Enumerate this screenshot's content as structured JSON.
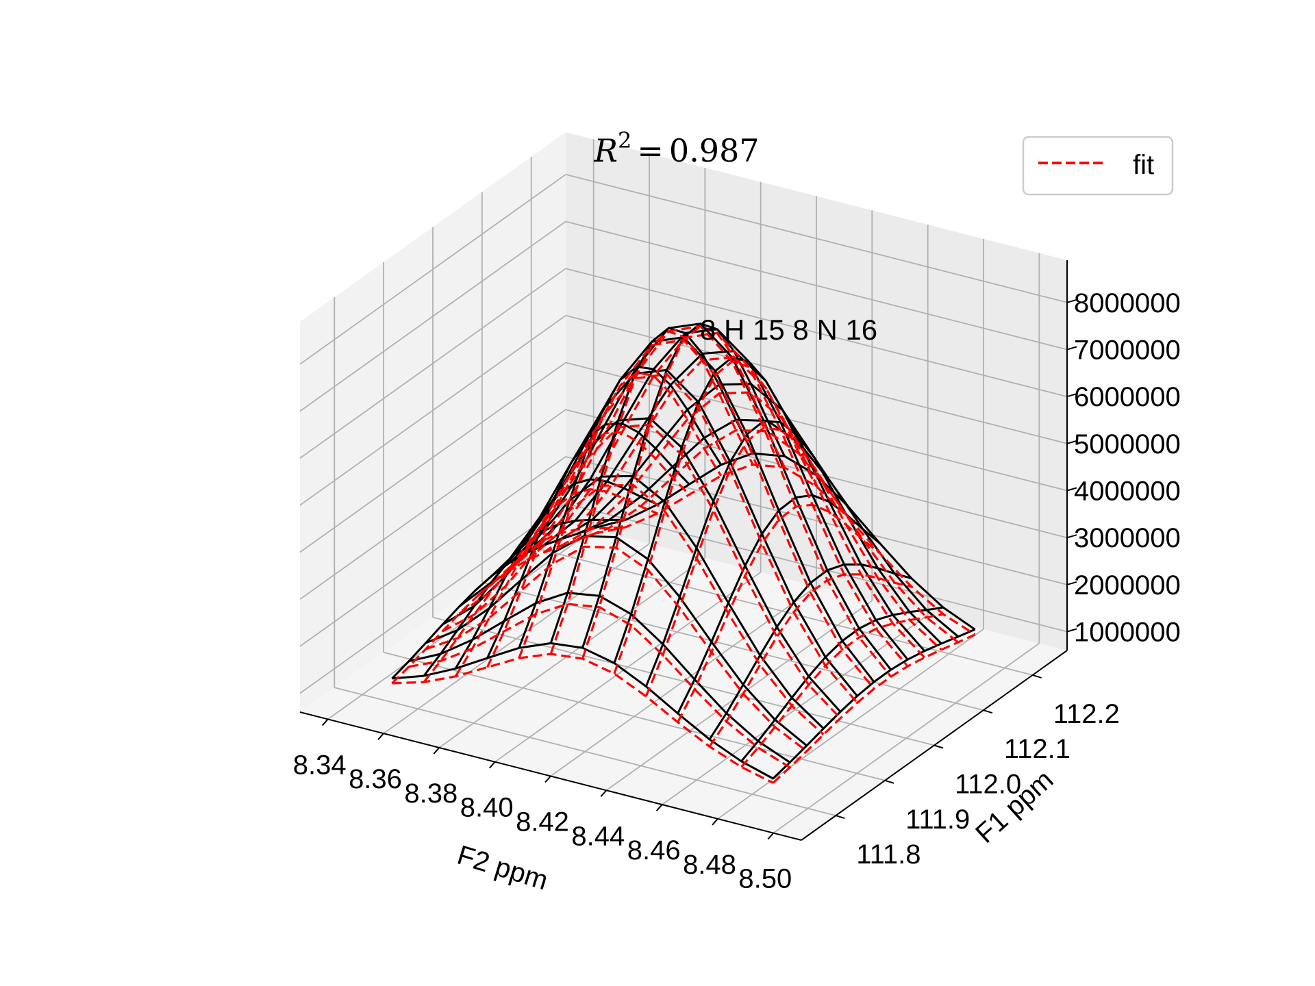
{
  "chart_data": {
    "type": "surface3d",
    "title": {
      "symbol": "R",
      "exponent": "2",
      "equals": "=",
      "value": "0.987"
    },
    "annotation": "8 H 15  8 N 16",
    "xlabel": "F2 ppm",
    "ylabel": "F1 ppm",
    "zlabel": "",
    "x_ticks": [
      "8.34",
      "8.36",
      "8.38",
      "8.40",
      "8.42",
      "8.44",
      "8.46",
      "8.48",
      "8.50"
    ],
    "y_ticks": [
      "111.8",
      "111.9",
      "112.0",
      "112.1",
      "112.2"
    ],
    "z_ticks": [
      "1000000",
      "2000000",
      "3000000",
      "4000000",
      "5000000",
      "6000000",
      "7000000",
      "8000000"
    ],
    "xlim": [
      8.33,
      8.51
    ],
    "ylim": [
      111.73,
      112.27
    ],
    "zlim": [
      600000,
      8900000
    ],
    "legend": {
      "position": "top-right",
      "entries": [
        {
          "label": "fit",
          "color": "#ff0000",
          "style": "dashed"
        }
      ]
    },
    "series": [
      {
        "style": "solid",
        "color": "#000000",
        "peak": {
          "x": 8.418,
          "y": 112.02,
          "height": 8000000,
          "sigma_x": 0.033,
          "sigma_y": 0.14,
          "baseline": 900000
        }
      },
      {
        "name": "fit",
        "style": "dashed",
        "color": "#ff0000",
        "peak": {
          "x": 8.418,
          "y": 112.02,
          "height": 7950000,
          "sigma_x": 0.032,
          "sigma_y": 0.135,
          "baseline": 850000
        }
      }
    ],
    "grid": true
  }
}
